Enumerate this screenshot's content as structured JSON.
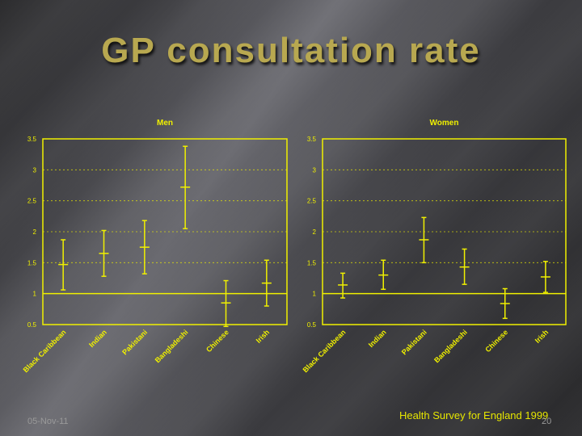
{
  "title": "GP consultation rate",
  "footer": {
    "date": "05-Nov-11",
    "page": "20",
    "source": "Health Survey for England 1999"
  },
  "colors": {
    "accent": "#f0f000",
    "title": "#b8a850"
  },
  "chart_data": [
    {
      "type": "errorbar",
      "title": "Men",
      "categories": [
        "Black Caribbean",
        "Indian",
        "Pakistani",
        "Bangladeshi",
        "Chinese",
        "Irish"
      ],
      "values": [
        1.47,
        1.65,
        1.75,
        2.72,
        0.85,
        1.17
      ],
      "lower": [
        1.06,
        1.28,
        1.32,
        2.05,
        0.47,
        0.8
      ],
      "upper": [
        1.87,
        2.02,
        2.18,
        3.38,
        1.21,
        1.54
      ],
      "ylim": [
        0.5,
        3.5
      ],
      "yticks": [
        "0.5",
        "1",
        "1.5",
        "2",
        "2.5",
        "3",
        "3.5"
      ],
      "reference_line": 1,
      "grid": "dashed"
    },
    {
      "type": "errorbar",
      "title": "Women",
      "categories": [
        "Black Caribbean",
        "Indian",
        "Pakistani",
        "Bangladeshi",
        "Chinese",
        "Irish"
      ],
      "values": [
        1.14,
        1.3,
        1.87,
        1.43,
        0.84,
        1.27
      ],
      "lower": [
        0.93,
        1.07,
        1.5,
        1.15,
        0.6,
        1.02
      ],
      "upper": [
        1.33,
        1.54,
        2.23,
        1.72,
        1.08,
        1.52
      ],
      "ylim": [
        0.5,
        3.5
      ],
      "yticks": [
        "0.5",
        "1",
        "1.5",
        "2",
        "2.5",
        "3",
        "3.5"
      ],
      "reference_line": 1,
      "grid": "dashed"
    }
  ]
}
